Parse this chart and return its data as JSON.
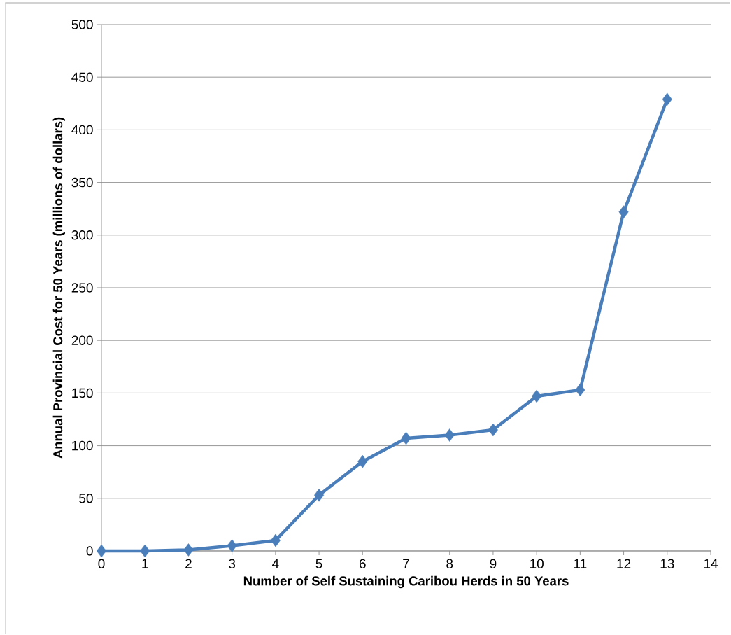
{
  "chart_data": {
    "type": "line",
    "xlabel": "Number of Self Sustaining Caribou Herds in 50 Years",
    "ylabel": "Annual Provincial Cost for 50 Years (millions of dollars)",
    "x": [
      0,
      1,
      2,
      3,
      4,
      5,
      6,
      7,
      8,
      9,
      10,
      11,
      12,
      13
    ],
    "series": [
      {
        "color": "#4a7ebb",
        "values": [
          0,
          0,
          1,
          5,
          10,
          53,
          85,
          107,
          110,
          115,
          147,
          153,
          322,
          429
        ]
      }
    ],
    "xlim": [
      0,
      14
    ],
    "xticks": [
      0,
      1,
      2,
      3,
      4,
      5,
      6,
      7,
      8,
      9,
      10,
      11,
      12,
      13,
      14
    ],
    "ylim": [
      0,
      500
    ],
    "yticks": [
      0,
      50,
      100,
      150,
      200,
      250,
      300,
      350,
      400,
      450,
      500
    ],
    "grid": "y",
    "marker": "diamond",
    "line_style": "solid"
  }
}
